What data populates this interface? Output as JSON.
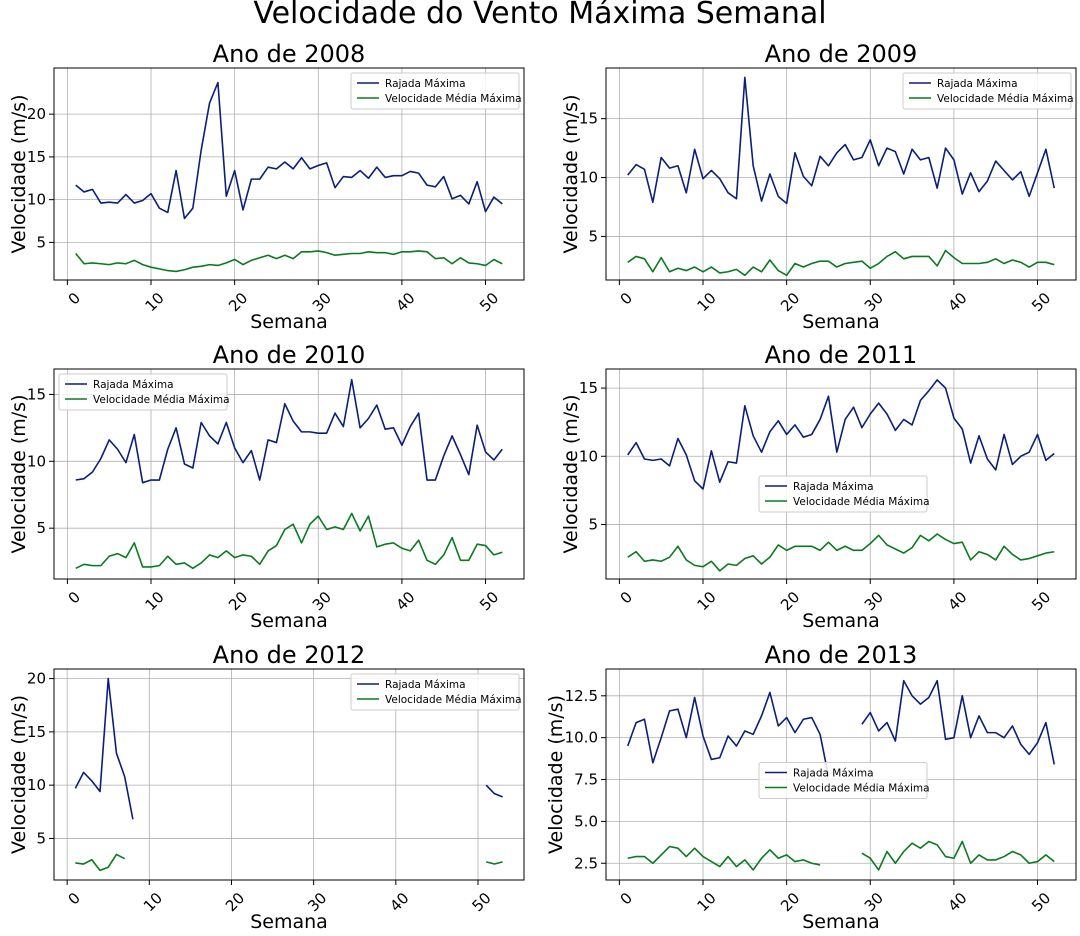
{
  "title": "Velocidade do Vento Máxima Semanal",
  "chart_data": [
    {
      "type": "line",
      "title": "Ano de 2008",
      "xlabel": "Semana",
      "ylabel": "Velocidade (m/s)",
      "xlim": [
        -1.6,
        54.6
      ],
      "ylim": [
        0.6,
        25.4
      ],
      "xticks": [
        0,
        10,
        20,
        30,
        40,
        50
      ],
      "yticks": [
        5,
        10,
        15,
        20
      ],
      "grid": true,
      "legend_loc": "upper right",
      "x": [
        1,
        2,
        3,
        4,
        5,
        6,
        7,
        8,
        9,
        10,
        11,
        12,
        13,
        14,
        15,
        16,
        17,
        18,
        19,
        20,
        21,
        22,
        23,
        24,
        25,
        26,
        27,
        28,
        29,
        30,
        31,
        32,
        33,
        34,
        35,
        36,
        37,
        38,
        39,
        40,
        41,
        42,
        43,
        44,
        45,
        46,
        47,
        48,
        49,
        50,
        51,
        52
      ],
      "series": [
        {
          "name": "Rajada Máxima",
          "color": "#0a1f7a",
          "values": [
            11.7,
            10.9,
            11.2,
            9.6,
            9.7,
            9.6,
            10.6,
            9.6,
            9.9,
            10.7,
            9.0,
            8.5,
            13.4,
            7.8,
            9.0,
            15.8,
            21.3,
            23.7,
            10.4,
            13.4,
            8.8,
            12.4,
            12.4,
            13.8,
            13.6,
            14.4,
            13.6,
            14.9,
            13.6,
            14.0,
            14.3,
            11.4,
            12.7,
            12.6,
            13.4,
            12.5,
            13.8,
            12.6,
            12.8,
            12.8,
            13.3,
            13.1,
            11.7,
            11.5,
            12.7,
            10.1,
            10.5,
            9.5,
            12.1,
            8.6,
            10.3,
            9.5
          ]
        },
        {
          "name": "Velocidade Média Máxima",
          "color": "#0b7a1f",
          "values": [
            3.7,
            2.5,
            2.6,
            2.5,
            2.4,
            2.6,
            2.5,
            2.9,
            2.4,
            2.1,
            1.9,
            1.7,
            1.6,
            1.8,
            2.1,
            2.2,
            2.4,
            2.3,
            2.6,
            3.0,
            2.4,
            2.9,
            3.2,
            3.5,
            3.1,
            3.5,
            3.1,
            3.9,
            3.9,
            4.0,
            3.8,
            3.5,
            3.6,
            3.7,
            3.7,
            3.9,
            3.8,
            3.8,
            3.6,
            3.9,
            3.9,
            4.0,
            3.9,
            3.1,
            3.2,
            2.5,
            3.2,
            2.6,
            2.5,
            2.3,
            3.0,
            2.5
          ]
        }
      ]
    },
    {
      "type": "line",
      "title": "Ano de 2009",
      "xlabel": "Semana",
      "ylabel": "Velocidade (m/s)",
      "xlim": [
        -1.6,
        54.6
      ],
      "ylim": [
        1.3,
        19.3
      ],
      "xticks": [
        0,
        10,
        20,
        30,
        40,
        50
      ],
      "yticks": [
        5,
        10,
        15
      ],
      "grid": true,
      "legend_loc": "upper right",
      "x": [
        1,
        2,
        3,
        4,
        5,
        6,
        7,
        8,
        9,
        10,
        11,
        12,
        13,
        14,
        15,
        16,
        17,
        18,
        19,
        20,
        21,
        22,
        23,
        24,
        25,
        26,
        27,
        28,
        29,
        30,
        31,
        32,
        33,
        34,
        35,
        36,
        37,
        38,
        39,
        40,
        41,
        42,
        43,
        44,
        45,
        46,
        47,
        48,
        49,
        50,
        51,
        52
      ],
      "series": [
        {
          "name": "Rajada Máxima",
          "color": "#0a1f7a",
          "values": [
            10.2,
            11.1,
            10.7,
            7.9,
            11.7,
            10.8,
            11.0,
            8.7,
            12.4,
            9.9,
            10.6,
            9.9,
            8.7,
            8.2,
            18.5,
            11.0,
            8.0,
            10.3,
            8.4,
            7.8,
            12.1,
            10.1,
            9.3,
            11.8,
            11.0,
            12.1,
            12.8,
            11.5,
            11.7,
            13.2,
            11.0,
            12.5,
            12.2,
            10.3,
            12.4,
            11.5,
            11.7,
            9.1,
            12.5,
            11.5,
            8.6,
            10.4,
            8.8,
            9.7,
            11.4,
            10.6,
            9.8,
            10.5,
            8.4,
            10.4,
            12.4,
            9.1
          ]
        },
        {
          "name": "Velocidade Média Máxima",
          "color": "#0b7a1f",
          "values": [
            2.8,
            3.3,
            3.1,
            2.0,
            3.2,
            2.0,
            2.3,
            2.1,
            2.4,
            2.0,
            2.4,
            1.9,
            2.0,
            2.2,
            1.7,
            2.4,
            2.0,
            3.0,
            2.1,
            1.7,
            2.7,
            2.4,
            2.7,
            2.9,
            2.9,
            2.4,
            2.7,
            2.8,
            2.9,
            2.3,
            2.7,
            3.3,
            3.7,
            3.1,
            3.3,
            3.3,
            3.3,
            2.5,
            3.8,
            3.2,
            2.7,
            2.7,
            2.7,
            2.8,
            3.1,
            2.7,
            3.0,
            2.8,
            2.4,
            2.8,
            2.8,
            2.6
          ]
        }
      ]
    },
    {
      "type": "line",
      "title": "Ano de 2010",
      "xlabel": "Semana",
      "ylabel": "Velocidade (m/s)",
      "xlim": [
        -1.6,
        54.6
      ],
      "ylim": [
        1.2,
        16.9
      ],
      "xticks": [
        0,
        10,
        20,
        30,
        40,
        50
      ],
      "yticks": [
        5,
        10,
        15
      ],
      "grid": true,
      "legend_loc": "upper left",
      "x": [
        1,
        2,
        3,
        4,
        5,
        6,
        7,
        8,
        9,
        10,
        11,
        12,
        13,
        14,
        15,
        16,
        17,
        18,
        19,
        20,
        21,
        22,
        23,
        24,
        25,
        26,
        27,
        28,
        29,
        30,
        31,
        32,
        33,
        34,
        35,
        36,
        37,
        38,
        39,
        40,
        41,
        42,
        43,
        44,
        45,
        46,
        47,
        48,
        49,
        50,
        51,
        52
      ],
      "series": [
        {
          "name": "Rajada Máxima",
          "color": "#0a1f7a",
          "values": [
            8.6,
            8.7,
            9.2,
            10.2,
            11.6,
            10.9,
            9.9,
            12.0,
            8.4,
            8.6,
            8.6,
            10.9,
            12.5,
            9.8,
            9.5,
            12.9,
            11.9,
            11.3,
            12.9,
            11.0,
            9.9,
            10.8,
            8.6,
            11.6,
            11.4,
            14.3,
            13.0,
            12.2,
            12.2,
            12.1,
            12.1,
            13.6,
            12.6,
            16.1,
            12.5,
            13.2,
            14.2,
            12.4,
            12.5,
            11.2,
            12.6,
            13.6,
            8.6,
            8.6,
            10.4,
            11.9,
            10.5,
            9.0,
            12.7,
            10.7,
            10.1,
            10.9
          ]
        },
        {
          "name": "Velocidade Média Máxima",
          "color": "#0b7a1f",
          "values": [
            2.0,
            2.3,
            2.2,
            2.2,
            2.9,
            3.1,
            2.8,
            3.9,
            2.1,
            2.1,
            2.2,
            2.9,
            2.3,
            2.4,
            2.0,
            2.4,
            3.0,
            2.8,
            3.3,
            2.8,
            3.0,
            2.9,
            2.3,
            3.3,
            3.7,
            4.9,
            5.3,
            3.9,
            5.3,
            5.9,
            4.9,
            5.1,
            4.9,
            6.1,
            4.8,
            5.9,
            3.6,
            3.8,
            3.9,
            3.5,
            3.3,
            4.1,
            2.6,
            2.3,
            3.0,
            4.3,
            2.6,
            2.6,
            3.8,
            3.7,
            3.0,
            3.2
          ]
        }
      ]
    },
    {
      "type": "line",
      "title": "Ano de 2011",
      "xlabel": "Semana",
      "ylabel": "Velocidade (m/s)",
      "xlim": [
        -1.6,
        54.6
      ],
      "ylim": [
        1.0,
        16.4
      ],
      "xticks": [
        0,
        10,
        20,
        30,
        40,
        50
      ],
      "yticks": [
        5,
        10,
        15
      ],
      "grid": true,
      "legend_loc": "center left",
      "x": [
        1,
        2,
        3,
        4,
        5,
        6,
        7,
        8,
        9,
        10,
        11,
        12,
        13,
        14,
        15,
        16,
        17,
        18,
        19,
        20,
        21,
        22,
        23,
        24,
        25,
        26,
        27,
        28,
        29,
        30,
        31,
        32,
        33,
        34,
        35,
        36,
        37,
        38,
        39,
        40,
        41,
        42,
        43,
        44,
        45,
        46,
        47,
        48,
        49,
        50,
        51,
        52
      ],
      "series": [
        {
          "name": "Rajada Máxima",
          "color": "#0a1f7a",
          "values": [
            10.1,
            11.0,
            9.8,
            9.7,
            9.8,
            9.3,
            11.3,
            10.1,
            8.2,
            7.6,
            10.4,
            8.1,
            9.6,
            9.5,
            13.7,
            11.5,
            10.3,
            11.8,
            12.6,
            11.6,
            12.3,
            11.4,
            11.6,
            12.7,
            14.4,
            10.3,
            12.7,
            13.6,
            12.1,
            13.1,
            13.9,
            13.1,
            11.9,
            12.7,
            12.3,
            14.1,
            14.8,
            15.6,
            15.0,
            12.8,
            12.0,
            9.5,
            11.5,
            9.8,
            9.0,
            11.6,
            9.4,
            10.0,
            10.3,
            11.6,
            9.7,
            10.2
          ]
        },
        {
          "name": "Velocidade Média Máxima",
          "color": "#0b7a1f",
          "values": [
            2.6,
            3.0,
            2.3,
            2.4,
            2.3,
            2.6,
            3.4,
            2.4,
            2.0,
            1.9,
            2.3,
            1.6,
            2.1,
            2.0,
            2.5,
            2.7,
            2.1,
            2.6,
            3.5,
            3.1,
            3.4,
            3.4,
            3.4,
            3.1,
            3.7,
            3.1,
            3.4,
            3.1,
            3.1,
            3.6,
            4.2,
            3.5,
            3.2,
            2.9,
            3.3,
            4.2,
            3.8,
            4.3,
            3.9,
            3.6,
            3.7,
            2.4,
            3.0,
            2.8,
            2.4,
            3.4,
            2.8,
            2.4,
            2.5,
            2.7,
            2.9,
            3.0
          ]
        }
      ]
    },
    {
      "type": "line",
      "title": "Ano de 2012",
      "xlabel": "Semana",
      "ylabel": "Velocidade (m/s)",
      "xlim": [
        -1.6,
        55.6
      ],
      "ylim": [
        1.1,
        20.9
      ],
      "xticks": [
        0,
        10,
        20,
        30,
        40,
        50
      ],
      "yticks": [
        5,
        10,
        15,
        20
      ],
      "grid": true,
      "legend_loc": "upper right",
      "x": [
        1,
        2,
        3,
        4,
        5,
        6,
        7,
        8,
        9,
        10,
        11,
        12,
        13,
        14,
        15,
        16,
        17,
        18,
        19,
        20,
        21,
        22,
        23,
        24,
        25,
        26,
        27,
        28,
        29,
        30,
        31,
        32,
        33,
        34,
        35,
        36,
        37,
        38,
        39,
        40,
        41,
        42,
        43,
        44,
        45,
        46,
        47,
        48,
        49,
        50,
        51,
        52,
        53
      ],
      "series": [
        {
          "name": "Rajada Máxima",
          "color": "#0a1f7a",
          "values": [
            9.7,
            11.2,
            10.4,
            9.4,
            20.0,
            13.0,
            10.8,
            6.8,
            null,
            null,
            null,
            null,
            null,
            null,
            null,
            null,
            null,
            null,
            null,
            null,
            null,
            null,
            null,
            null,
            null,
            null,
            null,
            null,
            null,
            null,
            null,
            null,
            null,
            null,
            null,
            null,
            null,
            null,
            null,
            null,
            null,
            null,
            null,
            null,
            null,
            null,
            null,
            null,
            null,
            null,
            10.0,
            9.2,
            8.9
          ]
        },
        {
          "name": "Velocidade Média Máxima",
          "color": "#0b7a1f",
          "values": [
            2.7,
            2.6,
            3.0,
            2.0,
            2.3,
            3.5,
            3.1,
            null,
            null,
            null,
            null,
            null,
            null,
            null,
            null,
            null,
            null,
            null,
            null,
            null,
            null,
            null,
            null,
            null,
            null,
            null,
            null,
            null,
            null,
            null,
            null,
            null,
            null,
            null,
            null,
            null,
            null,
            null,
            null,
            null,
            null,
            null,
            null,
            null,
            null,
            null,
            null,
            null,
            null,
            null,
            2.8,
            2.6,
            2.8
          ]
        }
      ]
    },
    {
      "type": "line",
      "title": "Ano de 2013",
      "xlabel": "Semana",
      "ylabel": "Velocidade (m/s)",
      "xlim": [
        -1.6,
        54.6
      ],
      "ylim": [
        1.5,
        14.1
      ],
      "xticks": [
        0,
        10,
        20,
        30,
        40,
        50
      ],
      "yticks": [
        2.5,
        5.0,
        7.5,
        10.0,
        12.5
      ],
      "ytick_labels": [
        "2.5",
        "5.0",
        "7.5",
        "10.0",
        "12.5"
      ],
      "grid": true,
      "legend_loc": "center",
      "x": [
        1,
        2,
        3,
        4,
        5,
        6,
        7,
        8,
        9,
        10,
        11,
        12,
        13,
        14,
        15,
        16,
        17,
        18,
        19,
        20,
        21,
        22,
        23,
        24,
        25,
        26,
        27,
        28,
        29,
        30,
        31,
        32,
        33,
        34,
        35,
        36,
        37,
        38,
        39,
        40,
        41,
        42,
        43,
        44,
        45,
        46,
        47,
        48,
        49,
        50,
        51,
        52
      ],
      "series": [
        {
          "name": "Rajada Máxima",
          "color": "#0a1f7a",
          "values": [
            9.5,
            10.9,
            11.1,
            8.5,
            10.0,
            11.6,
            11.7,
            10.0,
            12.4,
            10.1,
            8.7,
            8.8,
            10.1,
            9.5,
            10.4,
            10.2,
            11.3,
            12.7,
            10.7,
            11.2,
            10.3,
            11.1,
            11.2,
            10.2,
            7.7,
            null,
            null,
            null,
            10.8,
            11.5,
            10.4,
            10.9,
            9.8,
            13.4,
            12.5,
            12.0,
            12.4,
            13.4,
            9.9,
            10.0,
            12.5,
            10.0,
            11.3,
            10.3,
            10.3,
            10.0,
            10.7,
            9.6,
            9.0,
            9.7,
            10.9,
            8.4
          ]
        },
        {
          "name": "Velocidade Média Máxima",
          "color": "#0b7a1f",
          "values": [
            2.8,
            2.9,
            2.9,
            2.5,
            3.0,
            3.5,
            3.4,
            2.9,
            3.4,
            2.9,
            2.6,
            2.3,
            2.9,
            2.3,
            2.7,
            2.1,
            2.8,
            3.3,
            2.8,
            3.0,
            2.6,
            2.7,
            2.5,
            2.4,
            null,
            null,
            null,
            null,
            3.1,
            2.8,
            2.1,
            3.2,
            2.5,
            3.2,
            3.7,
            3.4,
            3.8,
            3.6,
            2.9,
            2.8,
            3.8,
            2.5,
            3.0,
            2.7,
            2.7,
            2.9,
            3.2,
            3.0,
            2.5,
            2.6,
            3.0,
            2.6
          ]
        }
      ]
    }
  ]
}
